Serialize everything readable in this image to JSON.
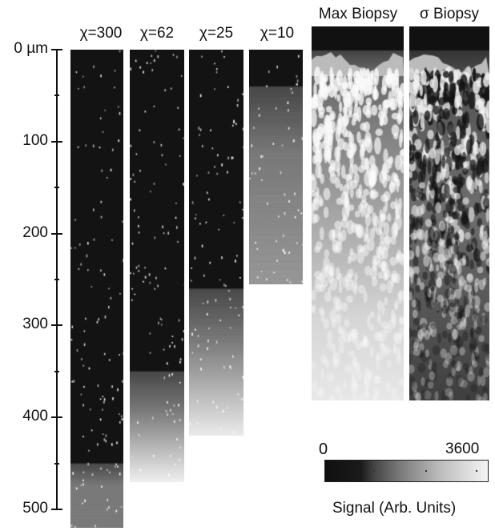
{
  "axis": {
    "ticks": [
      {
        "value": 0,
        "label": "0 µm"
      },
      {
        "value": 100,
        "label": "100"
      },
      {
        "value": 200,
        "label": "200"
      },
      {
        "value": 300,
        "label": "300"
      },
      {
        "value": 400,
        "label": "400"
      },
      {
        "value": 500,
        "label": "500"
      }
    ]
  },
  "panels": [
    {
      "label": "χ=300",
      "depth_um": 520,
      "transition_um": 450
    },
    {
      "label": "χ=62",
      "depth_um": 470,
      "transition_um": 350
    },
    {
      "label": "χ=25",
      "depth_um": 420,
      "transition_um": 260
    },
    {
      "label": "χ=10",
      "depth_um": 255,
      "transition_um": 40
    },
    {
      "label": "Max Biopsy"
    },
    {
      "label": "σ Biopsy"
    }
  ],
  "colorbar": {
    "min_label": "0",
    "max_label": "3600",
    "caption": "Signal (Arb. Units)"
  }
}
